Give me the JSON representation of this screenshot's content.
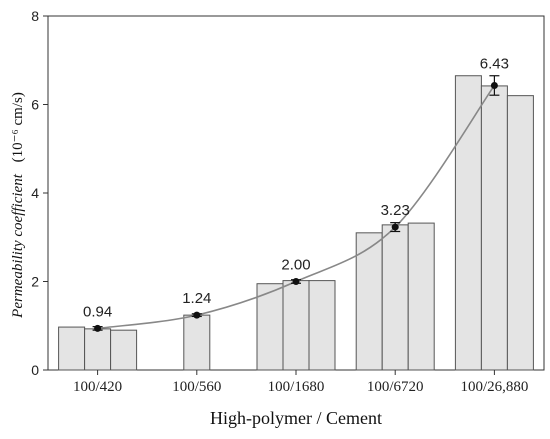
{
  "chart_data": {
    "type": "bar",
    "title": "",
    "xlabel": "High-polymer / Cement",
    "ylabel": "Permeability coefficient",
    "ylabel_unit": "(10⁻⁶ cm/s)",
    "ylim": [
      0,
      8
    ],
    "yticks": [
      0,
      2,
      4,
      6,
      8
    ],
    "grid": false,
    "legend": "none",
    "categories": [
      "100/420",
      "100/560",
      "100/1680",
      "100/6720",
      "100/26,880"
    ],
    "replicates": [
      [
        0.97,
        0.93,
        0.9
      ],
      [
        null,
        1.24,
        null
      ],
      [
        1.95,
        2.02,
        2.02
      ],
      [
        3.1,
        3.28,
        3.32
      ],
      [
        6.65,
        6.42,
        6.2
      ]
    ],
    "series": [
      {
        "type": "line",
        "values": [
          0.94,
          1.24,
          2.0,
          3.23,
          6.43
        ],
        "error": [
          0.04,
          0.03,
          0.04,
          0.1,
          0.22
        ],
        "labels": [
          "0.94",
          "1.24",
          "2.00",
          "3.23",
          "6.43"
        ]
      }
    ],
    "colors": {
      "bar_fill": "#e4e4e4",
      "bar_stroke": "#555555",
      "line": "#888888",
      "marker": "#111111"
    }
  }
}
